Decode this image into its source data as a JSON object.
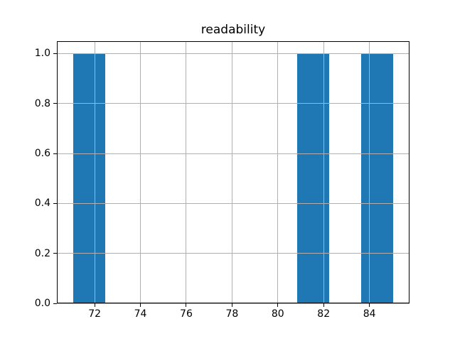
{
  "chart_data": {
    "type": "bar",
    "subtype": "histogram",
    "title": "readability",
    "xlabel": "",
    "ylabel": "",
    "bars": [
      {
        "x_start": 71.05,
        "x_end": 72.45,
        "height": 1.0
      },
      {
        "x_start": 80.85,
        "x_end": 82.25,
        "height": 1.0
      },
      {
        "x_start": 83.65,
        "x_end": 85.05,
        "height": 1.0
      }
    ],
    "bin_width": 1.4,
    "xlim": [
      70.35,
      85.75
    ],
    "ylim": [
      0,
      1.05
    ],
    "x_ticks": [
      72,
      74,
      76,
      78,
      80,
      82,
      84
    ],
    "y_ticks": [
      "0.0",
      "0.2",
      "0.4",
      "0.6",
      "0.8",
      "1.0"
    ],
    "grid": true,
    "grid_above_bars": true,
    "legend": false,
    "colors": {
      "bar": "#1f77b4",
      "grid": "#b0b0b0",
      "spine": "#000000",
      "background": "#ffffff",
      "text": "#000000"
    }
  }
}
